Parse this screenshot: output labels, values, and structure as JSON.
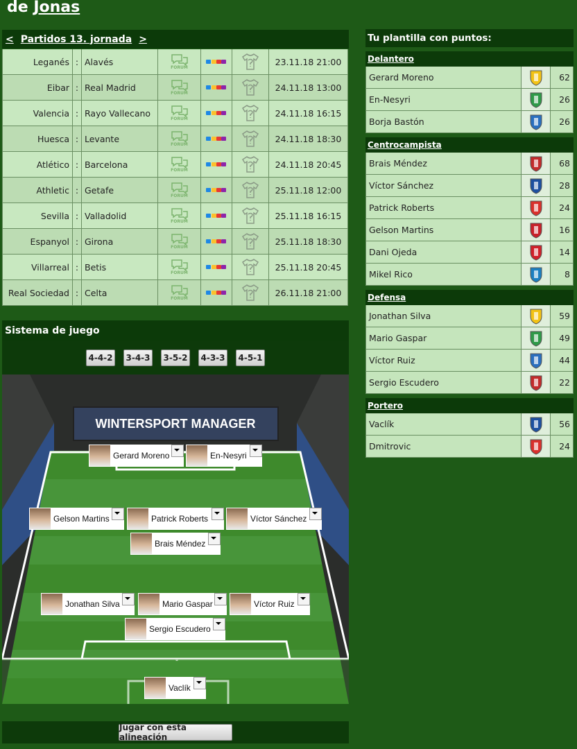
{
  "header": {
    "prefix": "de",
    "name": "Jonas"
  },
  "matches": {
    "prev": "<",
    "title": "Partidos 13. jornada",
    "next": ">",
    "separator": ":",
    "forum_label": "FORUM",
    "rows": [
      {
        "home": "Leganés",
        "away": "Alavés",
        "date": "23.11.18 21:00"
      },
      {
        "home": "Eibar",
        "away": "Real Madrid",
        "date": "24.11.18 13:00"
      },
      {
        "home": "Valencia",
        "away": "Rayo Vallecano",
        "date": "24.11.18 16:15"
      },
      {
        "home": "Huesca",
        "away": "Levante",
        "date": "24.11.18 18:30"
      },
      {
        "home": "Atlético",
        "away": "Barcelona",
        "date": "24.11.18 20:45"
      },
      {
        "home": "Athletic",
        "away": "Getafe",
        "date": "25.11.18 12:00"
      },
      {
        "home": "Sevilla",
        "away": "Valladolid",
        "date": "25.11.18 16:15"
      },
      {
        "home": "Espanyol",
        "away": "Girona",
        "date": "25.11.18 18:30"
      },
      {
        "home": "Villarreal",
        "away": "Betis",
        "date": "25.11.18 20:45"
      },
      {
        "home": "Real Sociedad",
        "away": "Celta",
        "date": "26.11.18 21:00"
      }
    ]
  },
  "formation": {
    "title": "Sistema de juego",
    "systems": [
      "4-4-2",
      "3-4-3",
      "3-5-2",
      "4-3-3",
      "4-5-1"
    ],
    "banner": "WINTERSPORT MANAGER",
    "lineup": [
      "Gerard Moreno",
      "En-Nesyri",
      "Gelson Martins",
      "Patrick Roberts",
      "Víctor Sánchez",
      "Brais Méndez",
      "Jonathan Silva",
      "Mario Gaspar",
      "Víctor Ruiz",
      "Sergio Escudero",
      "Vaclík"
    ],
    "submit": "Jugar con esta alineación"
  },
  "squad": {
    "title": "Tu plantilla con puntos:",
    "groups": [
      {
        "name": "Delantero",
        "players": [
          {
            "name": "Gerard Moreno",
            "points": 62
          },
          {
            "name": "En-Nesyri",
            "points": 26
          },
          {
            "name": "Borja Bastón",
            "points": 26
          }
        ]
      },
      {
        "name": "Centrocampista",
        "players": [
          {
            "name": "Brais Méndez",
            "points": 68
          },
          {
            "name": "Víctor Sánchez",
            "points": 28
          },
          {
            "name": "Patrick Roberts",
            "points": 24
          },
          {
            "name": "Gelson Martins",
            "points": 16
          },
          {
            "name": "Dani Ojeda",
            "points": 14
          },
          {
            "name": "Mikel Rico",
            "points": 8
          }
        ]
      },
      {
        "name": "Defensa",
        "players": [
          {
            "name": "Jonathan Silva",
            "points": 59
          },
          {
            "name": "Mario Gaspar",
            "points": 49
          },
          {
            "name": "Víctor Ruiz",
            "points": 44
          },
          {
            "name": "Sergio Escudero",
            "points": 22
          }
        ]
      },
      {
        "name": "Portero",
        "players": [
          {
            "name": "Vaclík",
            "points": 56
          },
          {
            "name": "Dmitrovic",
            "points": 24
          }
        ]
      }
    ]
  }
}
